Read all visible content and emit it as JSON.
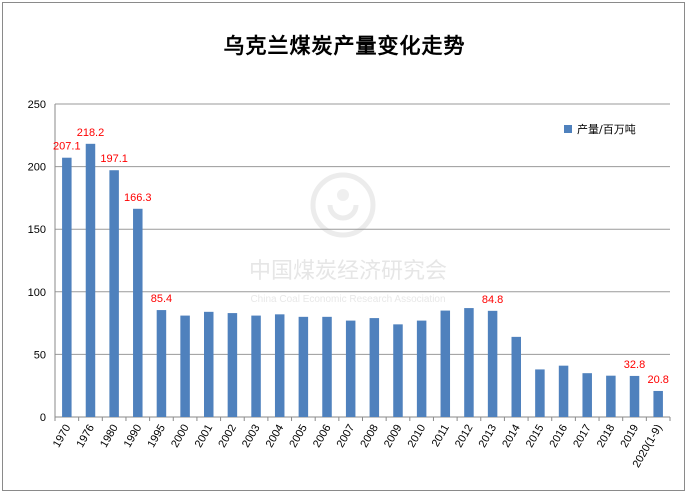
{
  "chart_data": {
    "type": "bar",
    "title": "乌克兰煤炭产量变化走势",
    "xlabel": "",
    "ylabel": "",
    "ylim": [
      0,
      250
    ],
    "yticks": [
      0,
      50,
      100,
      150,
      200,
      250
    ],
    "grid": true,
    "legend_position": "top-right",
    "categories": [
      "1970",
      "1976",
      "1980",
      "1990",
      "1995",
      "2000",
      "2001",
      "2002",
      "2003",
      "2004",
      "2005",
      "2006",
      "2007",
      "2008",
      "2009",
      "2010",
      "2011",
      "2012",
      "2013",
      "2014",
      "2015",
      "2016",
      "2017",
      "2018",
      "2019",
      "2020(1-9)"
    ],
    "series": [
      {
        "name": "产量/百万吨",
        "color": "#4f81bd",
        "values": [
          207.1,
          218.2,
          197.1,
          166.3,
          85.4,
          81,
          84,
          83,
          81,
          82,
          80,
          80,
          77,
          79,
          74,
          77,
          85,
          87,
          84.8,
          64,
          38,
          41,
          35,
          33,
          32.8,
          20.8
        ]
      }
    ],
    "data_labels": [
      {
        "index": 0,
        "text": "207.1"
      },
      {
        "index": 1,
        "text": "218.2"
      },
      {
        "index": 2,
        "text": "197.1"
      },
      {
        "index": 3,
        "text": "166.3"
      },
      {
        "index": 4,
        "text": "85.4"
      },
      {
        "index": 18,
        "text": "84.8"
      },
      {
        "index": 24,
        "text": "32.8"
      },
      {
        "index": 25,
        "text": "20.8"
      }
    ],
    "data_label_color": "#ff0000"
  },
  "watermark": {
    "text": "中国煤炭经济研究会",
    "subtext": "China Coal Economic Research Association",
    "icon": "coal-association-logo"
  }
}
